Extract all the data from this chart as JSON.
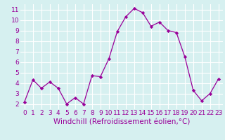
{
  "x": [
    0,
    1,
    2,
    3,
    4,
    5,
    6,
    7,
    8,
    9,
    10,
    11,
    12,
    13,
    14,
    15,
    16,
    17,
    18,
    19,
    20,
    21,
    22,
    23
  ],
  "y": [
    2.2,
    4.3,
    3.5,
    4.1,
    3.5,
    2.0,
    2.6,
    2.0,
    4.7,
    4.6,
    6.3,
    8.9,
    10.3,
    11.1,
    10.7,
    9.4,
    9.8,
    9.0,
    8.8,
    6.5,
    3.3,
    2.3,
    3.0,
    4.4
  ],
  "line_color": "#990099",
  "marker": "D",
  "marker_size": 2.2,
  "bg_color": "#d6f0f0",
  "grid_color": "#ffffff",
  "xlabel": "Windchill (Refroidissement éolien,°C)",
  "xlabel_color": "#990099",
  "tick_color": "#990099",
  "ylim": [
    1.5,
    11.5
  ],
  "yticks": [
    2,
    3,
    4,
    5,
    6,
    7,
    8,
    9,
    10,
    11
  ],
  "xticks": [
    0,
    1,
    2,
    3,
    4,
    5,
    6,
    7,
    8,
    9,
    10,
    11,
    12,
    13,
    14,
    15,
    16,
    17,
    18,
    19,
    20,
    21,
    22,
    23
  ],
  "xlim": [
    -0.5,
    23.5
  ],
  "tick_fontsize": 6.5,
  "xlabel_fontsize": 7.5
}
